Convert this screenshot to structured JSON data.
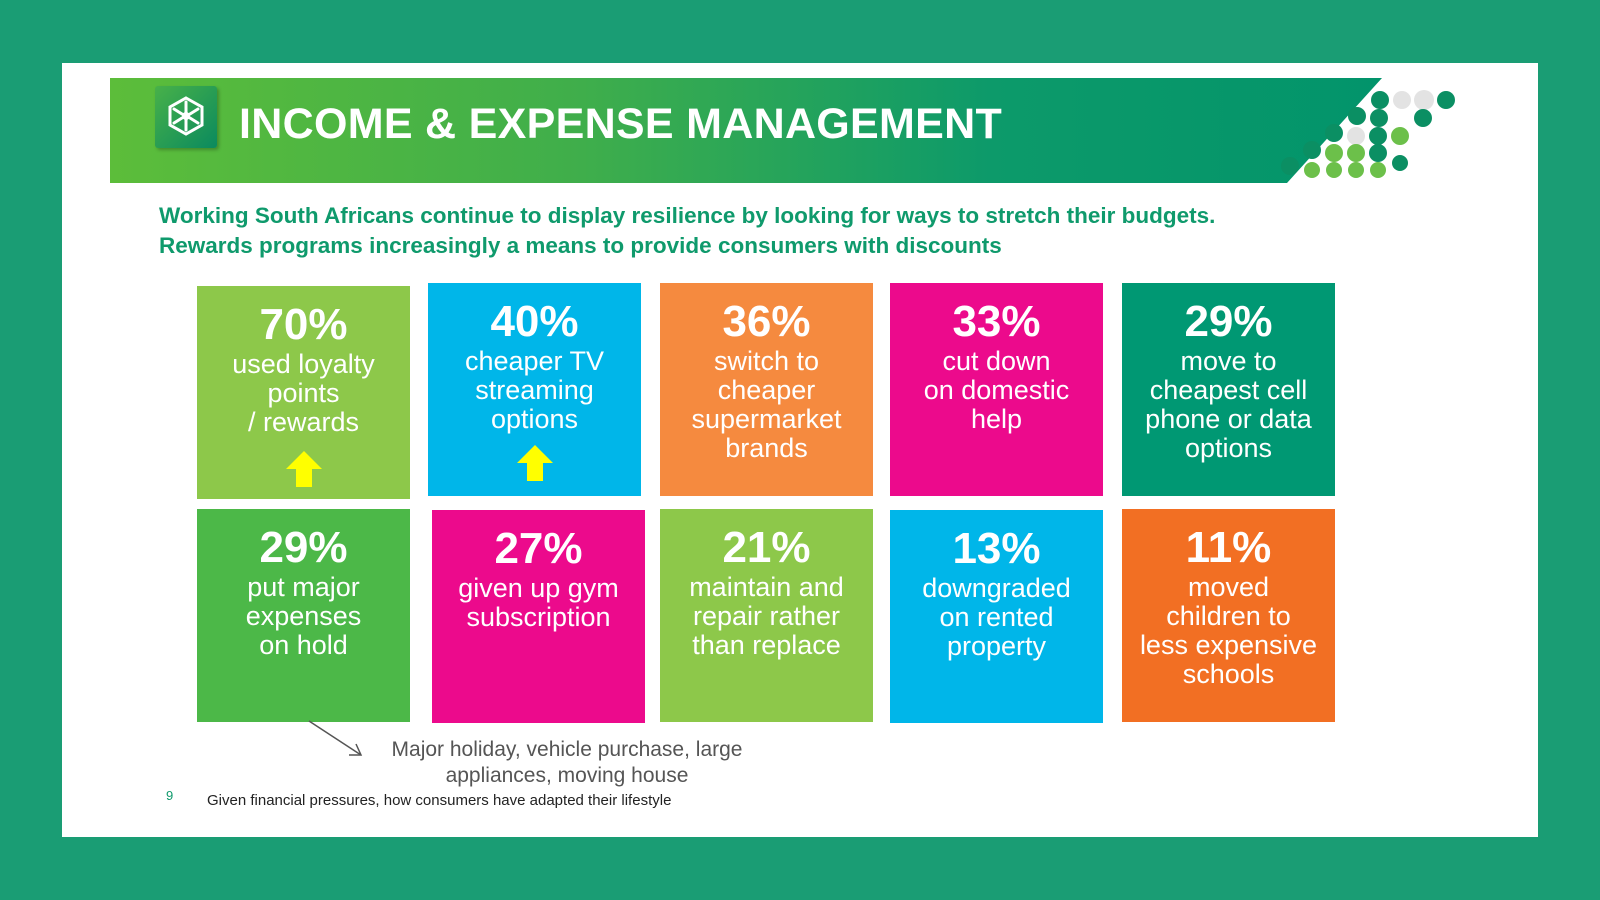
{
  "header": {
    "title": "INCOME & EXPENSE MANAGEMENT",
    "logo_icon": "old-mutual-logo-icon"
  },
  "subtitle": {
    "line1": "Working South Africans continue to display resilience by looking for ways to stretch their budgets.",
    "line2": "Rewards programs increasingly a means to provide consumers with discounts"
  },
  "colors": {
    "page_background": "#1a9d74",
    "lime": "#8dc84a",
    "cyan": "#00b6e9",
    "orange": "#f58a3f",
    "magenta": "#ec0a8c",
    "teal": "#009873",
    "green": "#4cb848",
    "bright_orange": "#f26f23",
    "arrow_yellow": "#ffff00"
  },
  "tiles": [
    {
      "pct": "70%",
      "line1": "used loyalty",
      "line2": "points",
      "line3": "/ rewards",
      "line4": "",
      "trend": "up-arrow-icon",
      "color": "#8dc84a"
    },
    {
      "pct": "40%",
      "line1": "cheaper TV",
      "line2": "streaming",
      "line3": "options",
      "line4": "",
      "trend": "up-arrow-icon",
      "color": "#00b6e9"
    },
    {
      "pct": "36%",
      "line1": "switch to",
      "line2": "cheaper",
      "line3": "supermarket",
      "line4": "brands",
      "color": "#f58a3f"
    },
    {
      "pct": "33%",
      "line1": "cut down",
      "line2": "on domestic",
      "line3": "help",
      "line4": "",
      "color": "#ec0a8c"
    },
    {
      "pct": "29%",
      "line1": "move to",
      "line2": "cheapest cell",
      "line3": "phone or data",
      "line4": "options",
      "color": "#009873"
    },
    {
      "pct": "29%",
      "line1": "put major",
      "line2": "expenses",
      "line3": "on hold",
      "line4": "",
      "color": "#4cb848"
    },
    {
      "pct": "27%",
      "line1": "given up gym",
      "line2": "subscription",
      "line3": "",
      "line4": "",
      "color": "#ec0a8c"
    },
    {
      "pct": "21%",
      "line1": "maintain and",
      "line2": "repair rather",
      "line3": "than replace",
      "line4": "",
      "color": "#8dc84a"
    },
    {
      "pct": "13%",
      "line1": "downgraded",
      "line2": "on rented",
      "line3": "property",
      "line4": "",
      "color": "#00b6e9"
    },
    {
      "pct": "11%",
      "line1": "moved",
      "line2": "children to",
      "line3": "less expensive",
      "line4": "schools",
      "color": "#f26f23"
    }
  ],
  "note": {
    "line1": "Major holiday, vehicle purchase, large",
    "line2": "appliances, moving house"
  },
  "footer": {
    "page_number": "9",
    "question": "Given financial pressures, how consumers have adapted their lifestyle"
  }
}
